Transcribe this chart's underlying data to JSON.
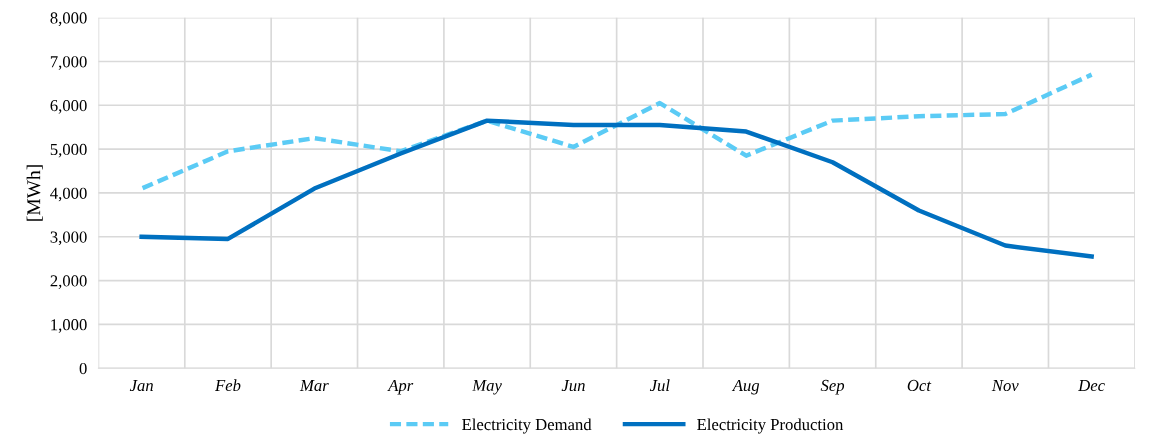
{
  "chart_data": {
    "type": "line",
    "ylabel": "[MWh]",
    "categories": [
      "Jan",
      "Feb",
      "Mar",
      "Apr",
      "May",
      "Jun",
      "Jul",
      "Aug",
      "Sep",
      "Oct",
      "Nov",
      "Dec"
    ],
    "series": [
      {
        "name": "Electricity Demand",
        "color": "#5bcbf5",
        "line_style": "dashed",
        "values": [
          4100,
          4950,
          5250,
          4950,
          5650,
          5050,
          6050,
          4850,
          5650,
          5750,
          5800,
          6700
        ]
      },
      {
        "name": "Electricity Production",
        "color": "#0070c0",
        "line_style": "solid",
        "values": [
          3000,
          2950,
          4100,
          4900,
          5650,
          5550,
          5550,
          5400,
          4700,
          3600,
          2800,
          2550
        ]
      }
    ],
    "ylim": [
      0,
      8000
    ],
    "yticks": [
      {
        "value": 0,
        "label": "0"
      },
      {
        "value": 1000,
        "label": "1,000"
      },
      {
        "value": 2000,
        "label": "2,000"
      },
      {
        "value": 3000,
        "label": "3,000"
      },
      {
        "value": 4000,
        "label": "4,000"
      },
      {
        "value": 5000,
        "label": "5,000"
      },
      {
        "value": 6000,
        "label": "6,000"
      },
      {
        "value": 7000,
        "label": "7,000"
      },
      {
        "value": 8000,
        "label": "8,000"
      }
    ],
    "grid": true,
    "legend": "bottom",
    "marker": "none"
  }
}
